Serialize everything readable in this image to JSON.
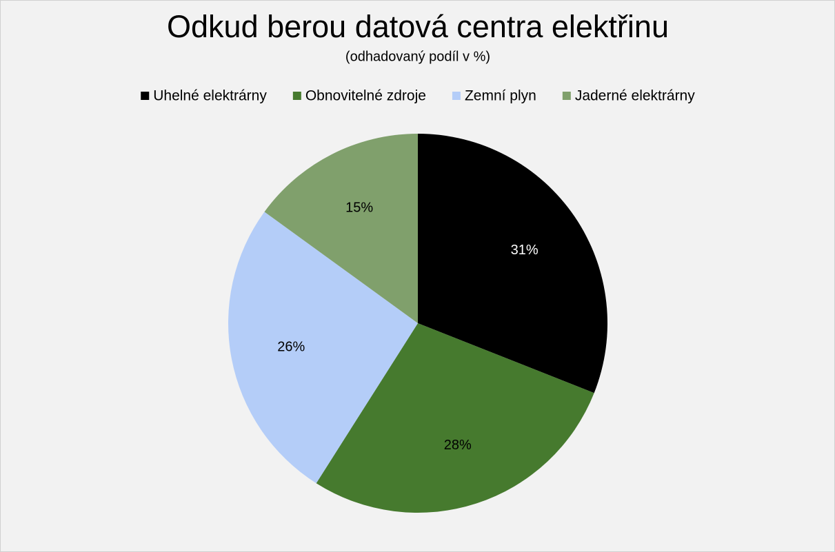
{
  "chart_data": {
    "type": "pie",
    "title": "Odkud berou datová centra elektřinu",
    "subtitle": "(odhadovaný podíl v %)",
    "categories": [
      "Uhelné elektrárny",
      "Obnovitelné zdroje",
      "Zemní plyn",
      "Jaderné elektrárny"
    ],
    "values": [
      31,
      28,
      26,
      15
    ],
    "value_labels": [
      "31%",
      "28%",
      "26%",
      "15%"
    ],
    "colors": [
      "#000000",
      "#467a2e",
      "#b4cdf8",
      "#80a06c"
    ],
    "legend": "top"
  }
}
